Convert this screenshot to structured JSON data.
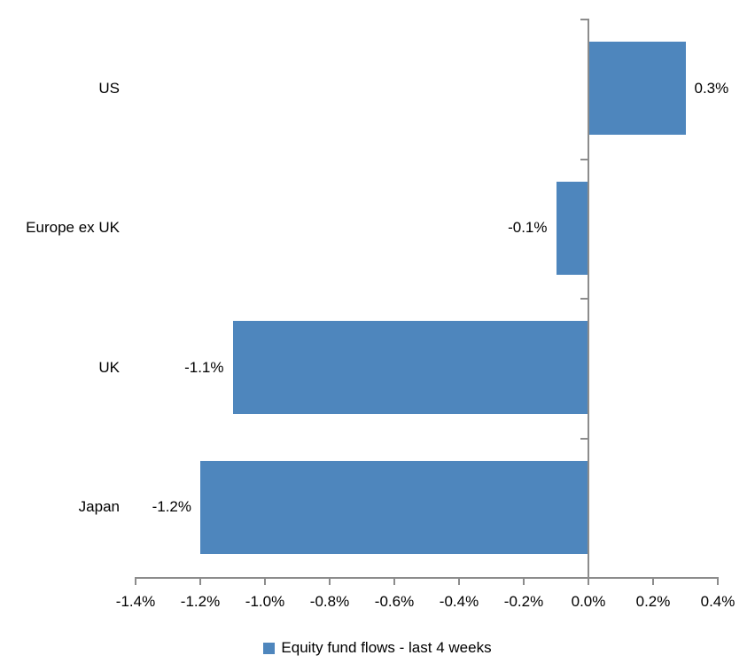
{
  "chart_data": {
    "type": "bar",
    "orientation": "horizontal",
    "title": "",
    "xlabel": "",
    "ylabel": "",
    "categories": [
      "US",
      "Europe ex UK",
      "UK",
      "Japan"
    ],
    "values": [
      0.3,
      -0.1,
      -1.1,
      -1.2
    ],
    "value_labels": [
      "0.3%",
      "-0.1%",
      "-1.1%",
      "-1.2%"
    ],
    "xlim": [
      -1.4,
      0.4
    ],
    "x_ticks": [
      -1.4,
      -1.2,
      -1.0,
      -0.8,
      -0.6,
      -0.4,
      -0.2,
      0.0,
      0.2,
      0.4
    ],
    "x_tick_labels": [
      "-1.4%",
      "-1.2%",
      "-1.0%",
      "-0.8%",
      "-0.6%",
      "-0.4%",
      "-0.2%",
      "0.0%",
      "0.2%",
      "0.4%"
    ],
    "grid": false,
    "legend_position": "bottom",
    "legend": [
      {
        "label": "Equity fund flows - last 4 weeks",
        "color": "#4e86bd"
      }
    ],
    "colors": {
      "bar": "#4e86bd",
      "axis": "#8c8c8c",
      "text": "#000000",
      "background": "#ffffff"
    }
  }
}
